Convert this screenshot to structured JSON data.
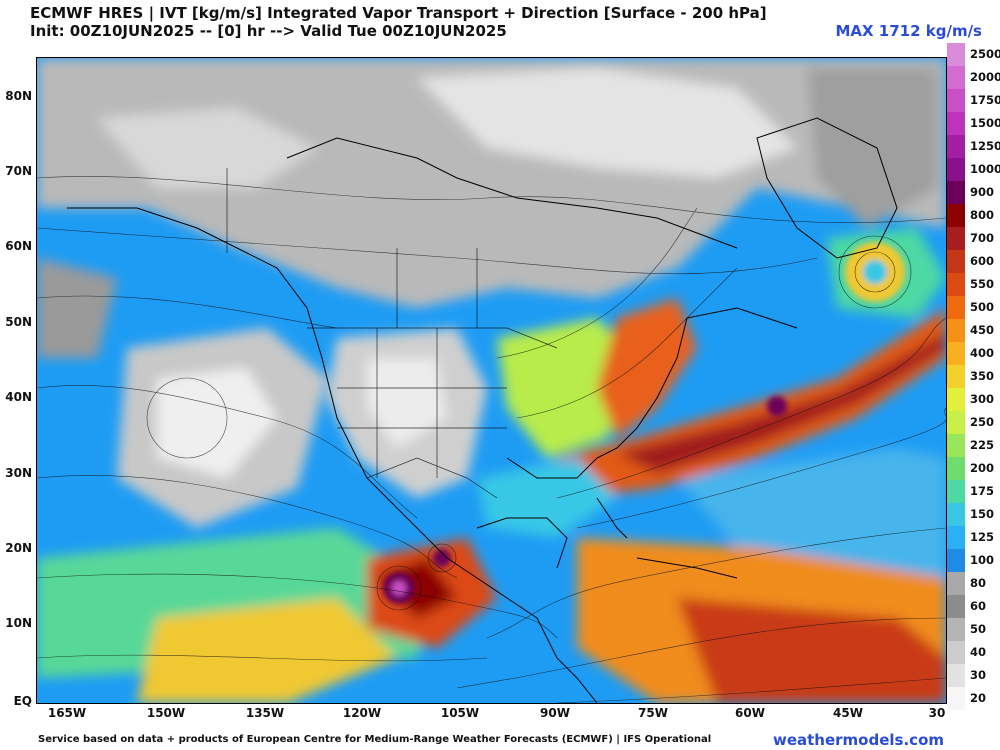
{
  "header": {
    "title": "ECMWF HRES | IVT [kg/m/s] Integrated Vapor Transport + Direction [Surface - 200 hPa]",
    "init": "Init: 00Z10JUN2025 -- [0] hr --> Valid Tue 00Z10JUN2025",
    "max": "MAX 1712 kg/m/s"
  },
  "axes": {
    "lat_labels": [
      "80N",
      "70N",
      "60N",
      "50N",
      "40N",
      "30N",
      "20N",
      "10N",
      "EQ"
    ],
    "lon_labels": [
      "165W",
      "150W",
      "135W",
      "120W",
      "105W",
      "90W",
      "75W",
      "60W",
      "45W",
      "30"
    ]
  },
  "colorbar": {
    "levels": [
      "2500",
      "2000",
      "1750",
      "1500",
      "1250",
      "1000",
      "900",
      "800",
      "700",
      "600",
      "550",
      "500",
      "450",
      "400",
      "350",
      "300",
      "250",
      "225",
      "200",
      "175",
      "150",
      "125",
      "100",
      "80",
      "60",
      "50",
      "40",
      "30",
      "20"
    ],
    "colors": [
      "#d98ad9",
      "#d26bd2",
      "#c94fc9",
      "#be33be",
      "#a21ea2",
      "#8a0f8a",
      "#6a005a",
      "#8c0000",
      "#a81e1e",
      "#c43618",
      "#dc4a12",
      "#f06a10",
      "#f79018",
      "#f8b020",
      "#f4d02a",
      "#e2f03a",
      "#c8f048",
      "#9ae65a",
      "#6edc6e",
      "#4ed8a4",
      "#38c8e6",
      "#2ab0f4",
      "#1e8ce6",
      "#a8a8a8",
      "#8c8c8c",
      "#b4b4b4",
      "#cccccc",
      "#e2e2e2",
      "#f6f6f6"
    ]
  },
  "footer": {
    "credit": "Service based on data + products of European Centre for Medium-Range Weather Forecasts (ECMWF) | IFS Operational",
    "site": "weathermodels.com"
  }
}
